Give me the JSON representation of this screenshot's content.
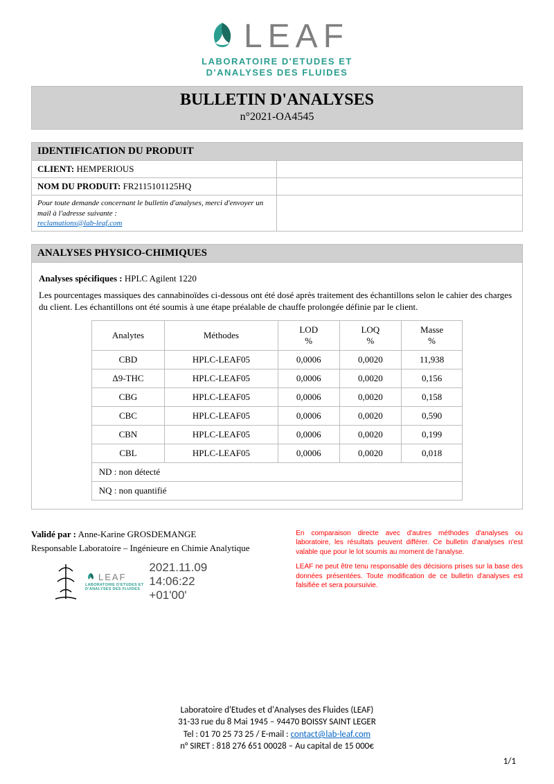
{
  "logo": {
    "brand": "LEAF",
    "line1": "LABORATOIRE D'ETUDES ET",
    "line2": "D'ANALYSES DES FLUIDES",
    "accent_color": "#2a9d8f",
    "dark_color": "#1a6b60"
  },
  "title": {
    "main": "BULLETIN D'ANALYSES",
    "number": "n°2021-OA4545"
  },
  "identification": {
    "header": "IDENTIFICATION DU PRODUIT",
    "client_label": "CLIENT:",
    "client_value": "HEMPERIOUS",
    "product_label": "NOM DU PRODUIT:",
    "product_value": "FR2115101125HQ",
    "note": "Pour toute demande concernant le bulletin d'analyses, merci d'envoyer un mail à l'adresse suivante :",
    "email": "reclamations@lab-leaf.com"
  },
  "analysis": {
    "header": "ANALYSES PHYSICO-CHIMIQUES",
    "specific_label": "Analyses spécifiques :",
    "specific_value": "HPLC Agilent 1220",
    "description": "Les pourcentages massiques des cannabinoïdes ci-dessous ont été dosé après traitement des échantillons selon le cahier des charges du client. Les échantillons ont été soumis à une étape préalable de chauffe prolongée définie par le client.",
    "columns": [
      "Analytes",
      "Méthodes",
      "LOD %",
      "LOQ %",
      "Masse %"
    ],
    "rows": [
      [
        "CBD",
        "HPLC-LEAF05",
        "0,0006",
        "0,0020",
        "11,938"
      ],
      [
        "Δ9-THC",
        "HPLC-LEAF05",
        "0,0006",
        "0,0020",
        "0,156"
      ],
      [
        "CBG",
        "HPLC-LEAF05",
        "0,0006",
        "0,0020",
        "0,158"
      ],
      [
        "CBC",
        "HPLC-LEAF05",
        "0,0006",
        "0,0020",
        "0,590"
      ],
      [
        "CBN",
        "HPLC-LEAF05",
        "0,0006",
        "0,0020",
        "0,199"
      ],
      [
        "CBL",
        "HPLC-LEAF05",
        "0,0006",
        "0,0020",
        "0,018"
      ]
    ],
    "notes": [
      "ND : non détecté",
      "NQ : non quantifié"
    ]
  },
  "validation": {
    "validated_label": "Validé par :",
    "validator": "Anne-Karine GROSDEMANGE",
    "role": "Responsable Laboratoire – Ingénieure en Chimie Analytique",
    "stamp_date_l1": "2021.11.09",
    "stamp_date_l2": "14:06:22",
    "stamp_date_l3": "+01'00'"
  },
  "disclaimer": {
    "p1": "En comparaison directe avec d'autres méthodes d'analyses ou laboratoire, les résultats peuvent différer. Ce bulletin d'analyses n'est valable que pour le lot soumis au moment de l'analyse.",
    "p2": "LEAF ne peut être tenu responsable des décisions prises sur la base des données présentées. Toute modification de ce bulletin d'analyses est falsifiée et sera poursuivie."
  },
  "footer": {
    "name": "Laboratoire d'Etudes et d'Analyses des Fluides (LEAF)",
    "address": "31-33 rue du 8 Mai 1945 – 94470 BOISSY SAINT LEGER",
    "tel_label": "Tel : ",
    "tel": "01 70 25 73 25",
    "email_label": " / E-mail : ",
    "email": "contact@lab-leaf.com",
    "siret": "n° SIRET : 818 276 651 00028 – Au capital de 15 000€",
    "page": "1/1"
  }
}
